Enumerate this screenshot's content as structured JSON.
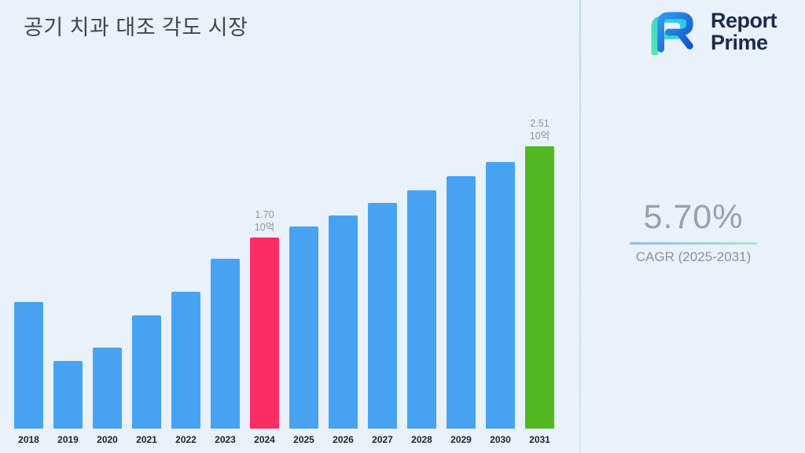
{
  "title": "공기 치과 대조 각도 시장",
  "logo": {
    "line1": "Report",
    "line2": "Prime"
  },
  "stats": {
    "cagr_value": "5.70%",
    "cagr_label": "CAGR (2025-2031)"
  },
  "chart_data": {
    "type": "bar",
    "title": "공기 치과 대조 각도 시장",
    "categories": [
      "2018",
      "2019",
      "2020",
      "2021",
      "2022",
      "2023",
      "2024",
      "2025",
      "2026",
      "2027",
      "2028",
      "2029",
      "2030",
      "2031"
    ],
    "values": [
      1.13,
      0.6,
      0.72,
      1.01,
      1.22,
      1.51,
      1.7,
      1.8,
      1.9,
      2.01,
      2.12,
      2.25,
      2.37,
      2.51
    ],
    "unit": "10억",
    "ylim": [
      0,
      2.8
    ],
    "xlabel": "",
    "ylabel": "",
    "grid": false,
    "legend": "none",
    "bar_labels": {
      "2024": "1.70",
      "2031": "2.51"
    },
    "colors": {
      "default": "#47A3F1",
      "overrides": {
        "2024": "#FB2E63",
        "2031": "#52B822"
      }
    }
  }
}
